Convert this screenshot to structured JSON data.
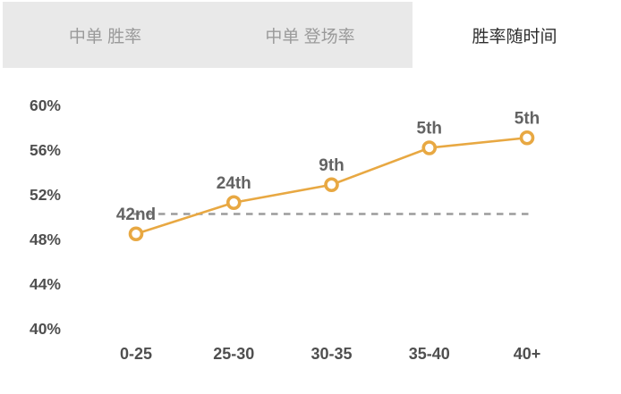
{
  "tab_bar": {
    "tabs": [
      {
        "label": "中单 胜率",
        "active": false
      },
      {
        "label": "中单 登场率",
        "active": false
      },
      {
        "label": "胜率随时间",
        "active": true
      }
    ]
  },
  "colors": {
    "line": "#e8a842",
    "point_fill": "#ffffff",
    "dashed_reference": "#9c9c9c",
    "axis_text": "#4f4f4f",
    "point_label_text": "#636363",
    "tab_inactive_bg": "#e9e9e9",
    "tab_inactive_text": "#9a9a9a",
    "tab_active_text": "#2e2e2e"
  },
  "chart_data": {
    "type": "line",
    "title": "胜率随时间",
    "categories": [
      "0-25",
      "25-30",
      "30-35",
      "35-40",
      "40+"
    ],
    "series": [
      {
        "name": "胜率",
        "values": [
          48.5,
          51.3,
          52.9,
          56.2,
          57.1
        ]
      }
    ],
    "point_labels": [
      "42nd",
      "24th",
      "9th",
      "5th",
      "5th"
    ],
    "yticks": [
      60,
      56,
      52,
      48,
      44,
      40
    ],
    "ytick_suffix": "%",
    "ylim": [
      40,
      62
    ],
    "reference_line": 50,
    "grid": false,
    "legend": "none",
    "xlabel": "",
    "ylabel": ""
  }
}
